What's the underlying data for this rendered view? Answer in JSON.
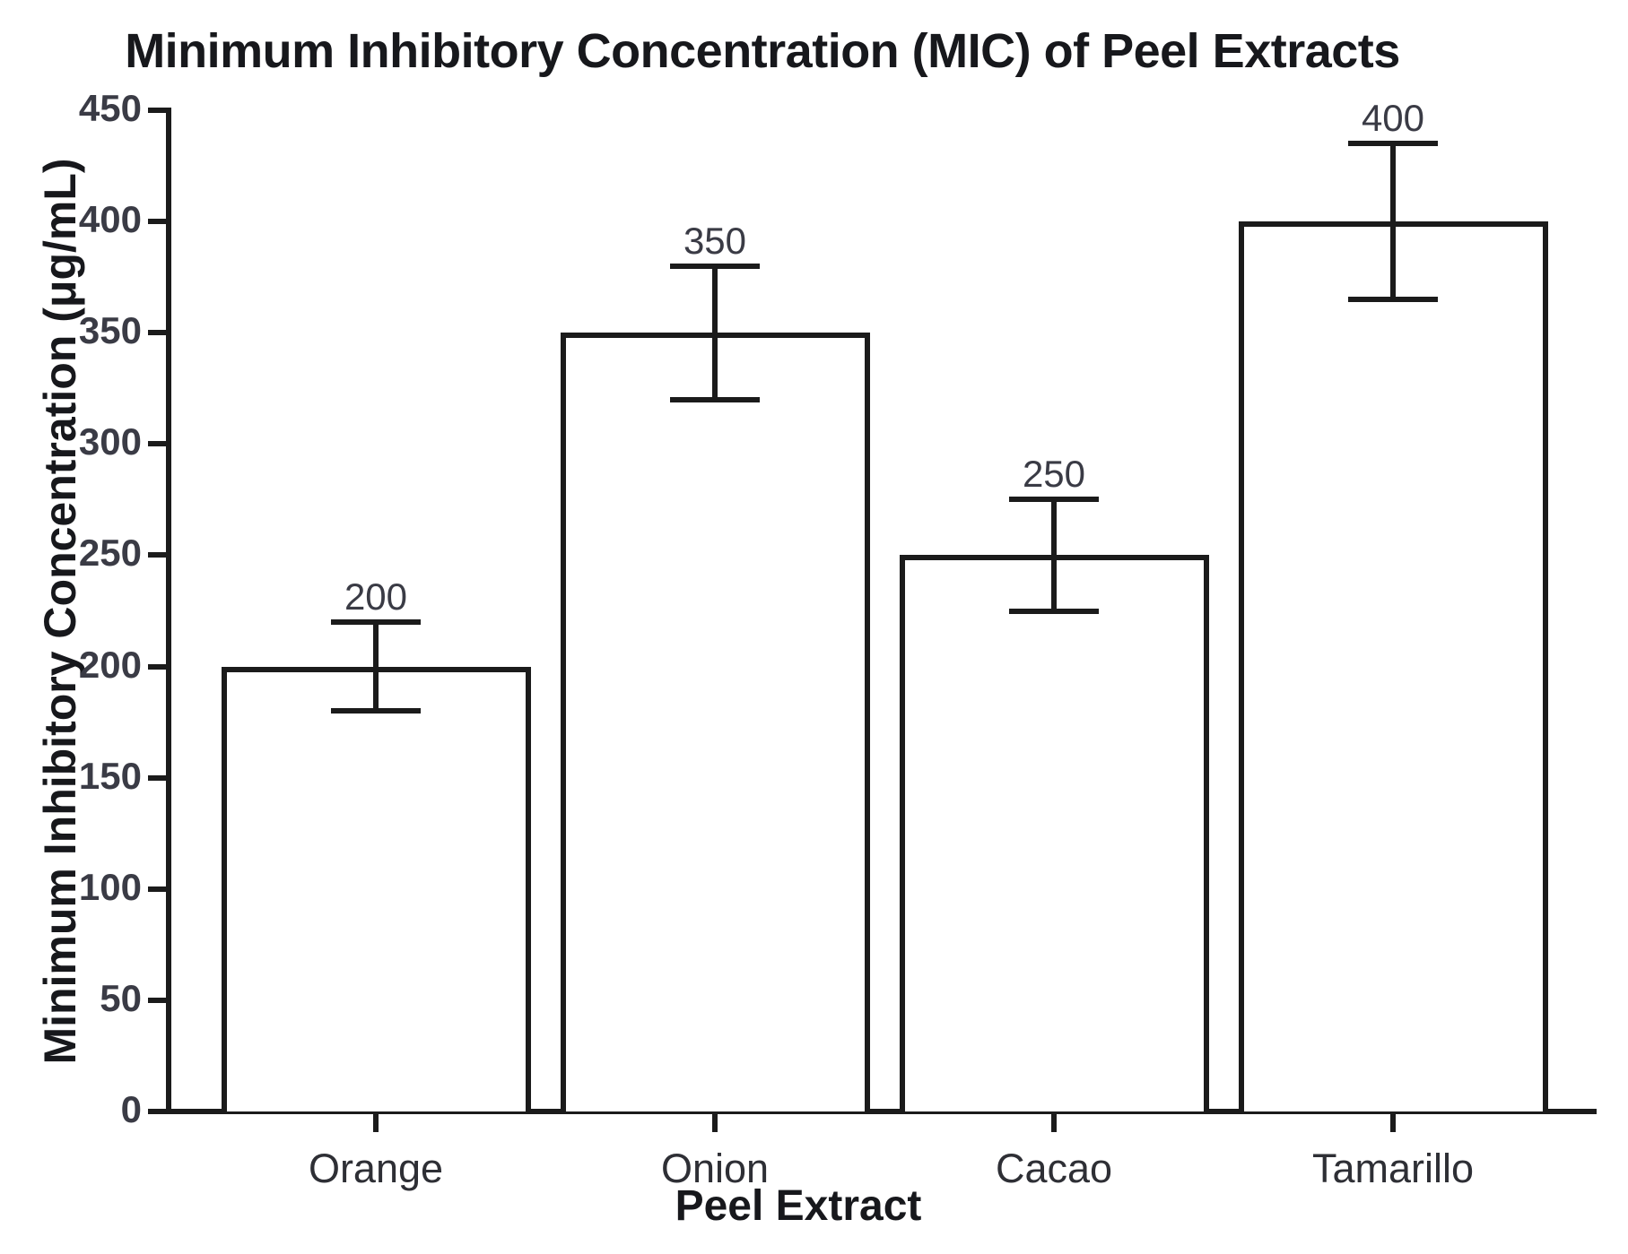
{
  "chart_data": {
    "type": "bar",
    "title": "Minimum Inhibitory Concentration (MIC) of Peel Extracts",
    "xlabel": "Peel Extract",
    "ylabel": "Minimum Inhibitory Concentration (μg/mL)",
    "categories": [
      "Orange",
      "Onion",
      "Cacao",
      "Tamarillo"
    ],
    "values": [
      200,
      350,
      250,
      400
    ],
    "errors": [
      20,
      30,
      25,
      35
    ],
    "bar_value_labels": [
      "200",
      "350",
      "250",
      "400"
    ],
    "yticks": [
      0,
      50,
      100,
      150,
      200,
      250,
      300,
      350,
      400,
      450
    ],
    "ylim": [
      0,
      450
    ],
    "grid": false,
    "legend_position": "none",
    "bar_fill_color": "#ffffff",
    "line_color": "#1b1b1b",
    "text_color": "#17181c"
  }
}
